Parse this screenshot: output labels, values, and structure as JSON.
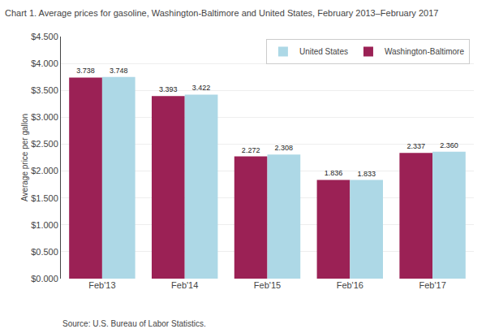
{
  "chart_data": {
    "type": "bar",
    "title": "Chart 1. Average prices for gasoline, Washington-Baltimore and United States, February 2013–February 2017",
    "ylabel": "Average price per gallon",
    "annotations": [
      "Source: U.S. Bureau of Labor Statistics."
    ],
    "categories": [
      "Feb'13",
      "Feb'14",
      "Feb'15",
      "Feb'16",
      "Feb'17"
    ],
    "series": [
      {
        "name": "Washington-Baltimore",
        "color": "#9B2155",
        "values": [
          3.738,
          3.393,
          2.272,
          1.836,
          2.337
        ],
        "value_labels": [
          "3.738",
          "3.393",
          "2.272",
          "1.836",
          "2.337"
        ]
      },
      {
        "name": "United States",
        "color": "#ADD8E6",
        "values": [
          3.748,
          3.422,
          2.308,
          1.833,
          2.36
        ],
        "value_labels": [
          "3.748",
          "3.422",
          "2.308",
          "1.833",
          "2.360"
        ]
      }
    ],
    "ylim": [
      0,
      4.5
    ],
    "yticks": [
      {
        "value": 0.0,
        "label": "$0.000"
      },
      {
        "value": 0.5,
        "label": "$0.500"
      },
      {
        "value": 1.0,
        "label": "$1.000"
      },
      {
        "value": 1.5,
        "label": "$1.500"
      },
      {
        "value": 2.0,
        "label": "$2.000"
      },
      {
        "value": 2.5,
        "label": "$2.500"
      },
      {
        "value": 3.0,
        "label": "$3.000"
      },
      {
        "value": 3.5,
        "label": "$3.500"
      },
      {
        "value": 4.0,
        "label": "$4.000"
      },
      {
        "value": 4.5,
        "label": "$4.500"
      }
    ],
    "grid": true,
    "legend": "upper right",
    "data_labels": true
  }
}
